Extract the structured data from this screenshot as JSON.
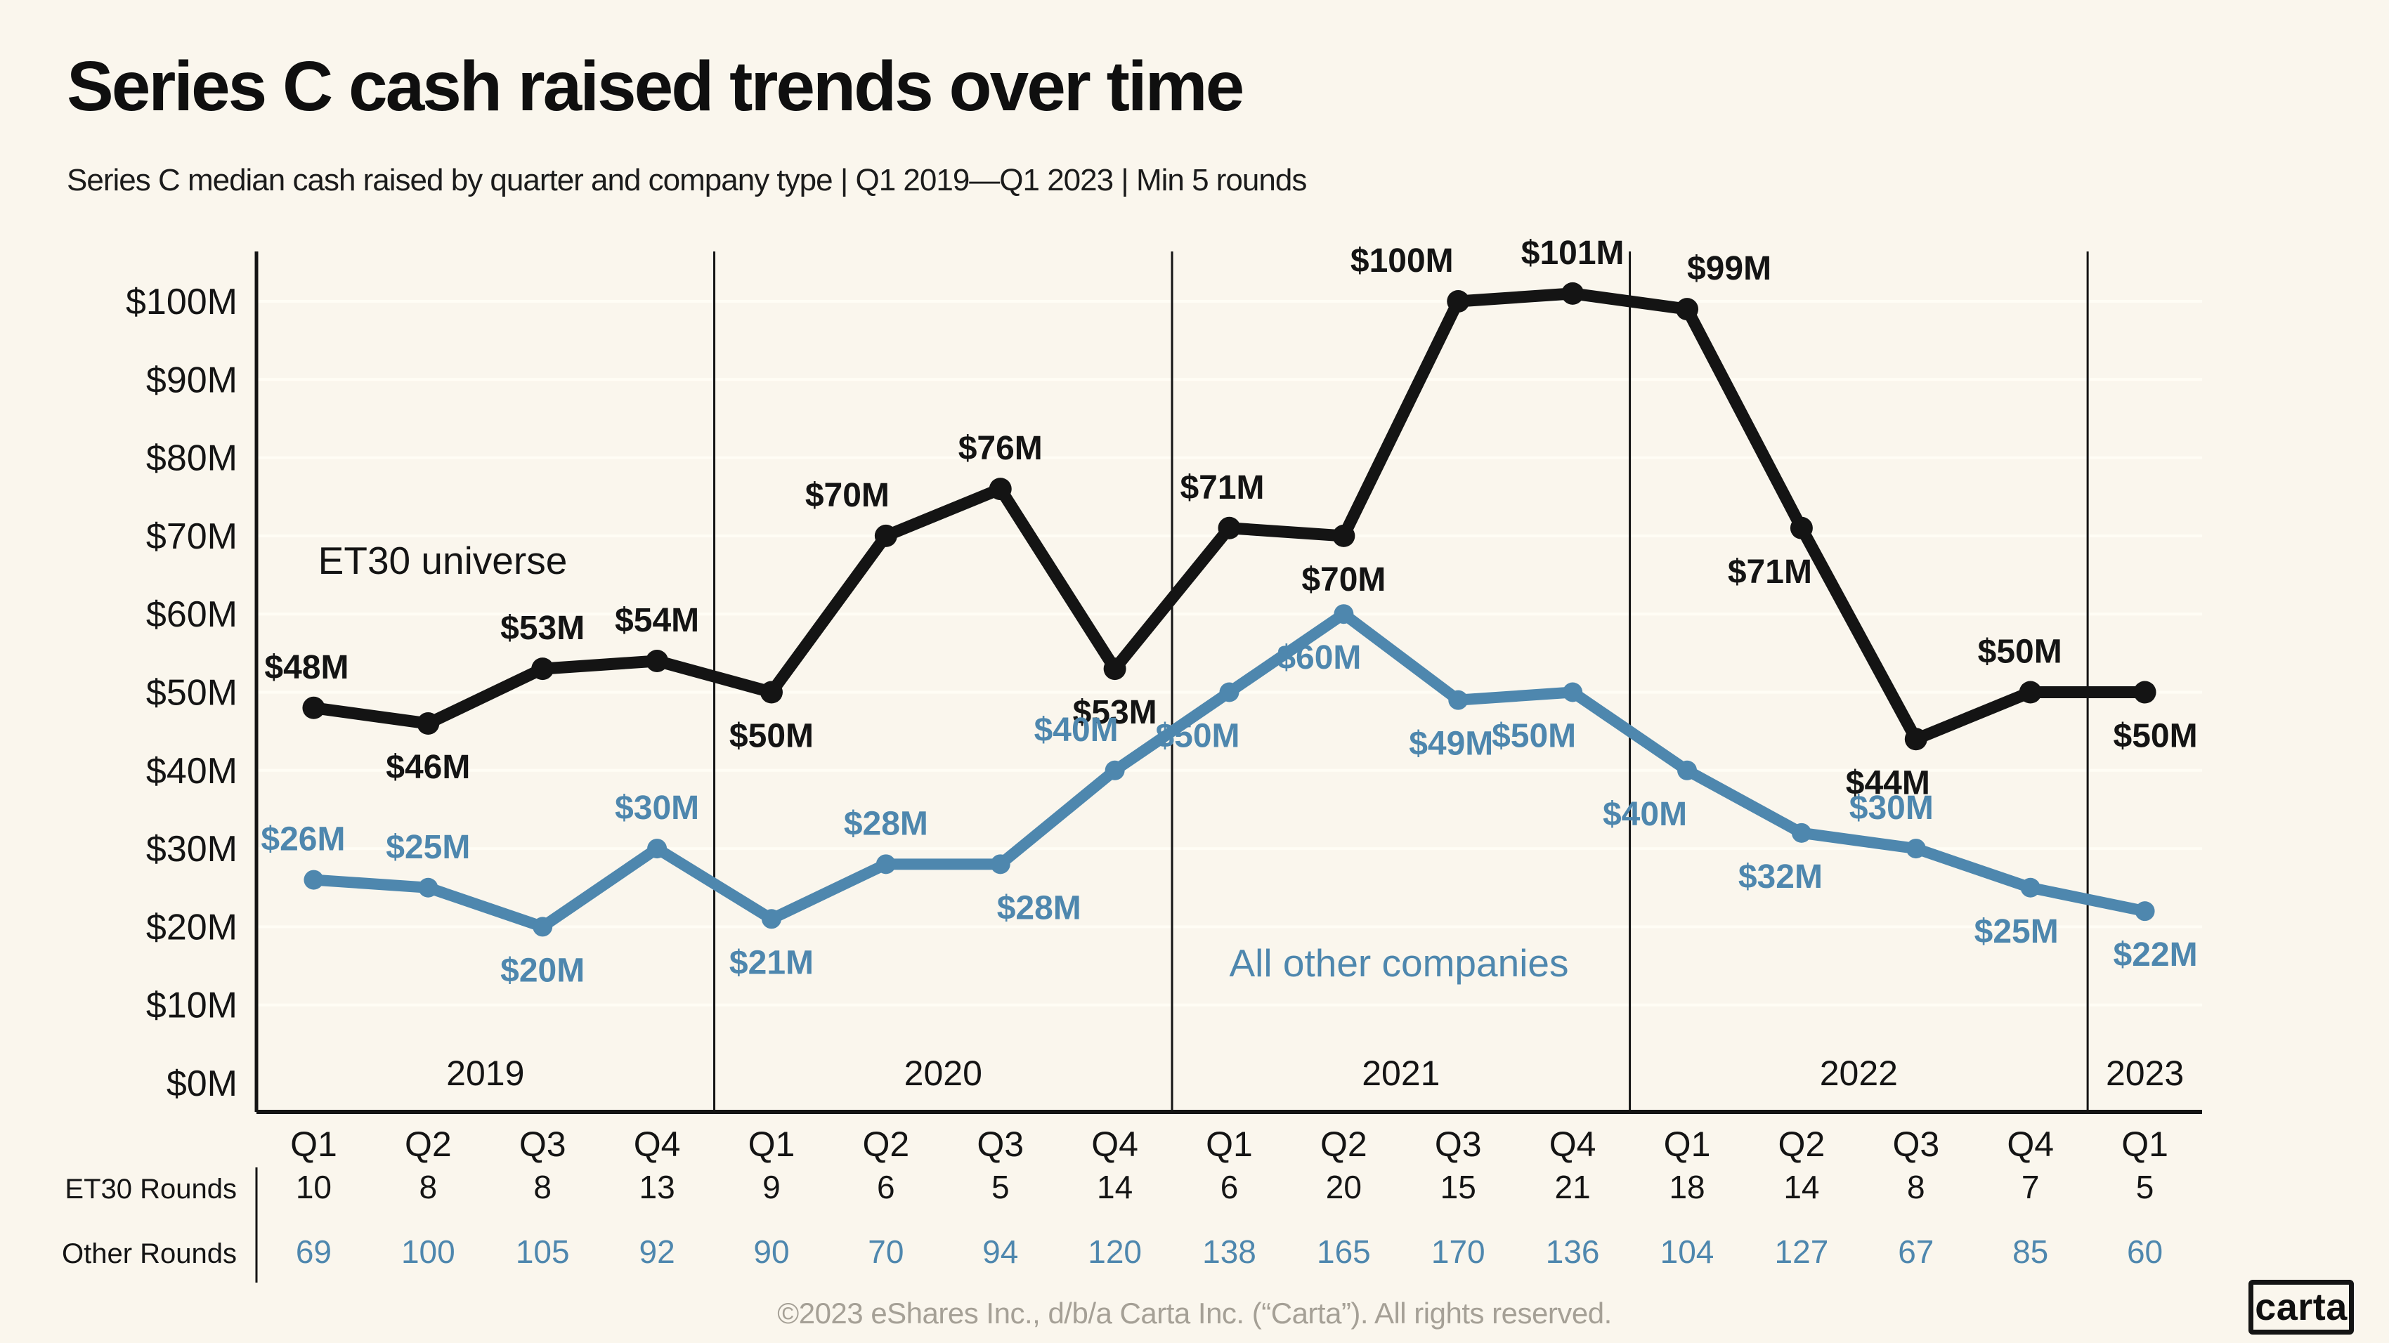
{
  "page": {
    "title": "Series C cash raised trends over time",
    "subtitle": "Series C median cash raised by quarter and company type | Q1 2019—Q1 2023 | Min 5 rounds",
    "footer": "©2023 eShares Inc., d/b/a Carta Inc. (“Carta”). All rights reserved.",
    "logo_text": "carta"
  },
  "colors": {
    "background": "#FAF6ED",
    "ink": "#141414",
    "blue": "#4E87AE",
    "gray_text": "#A5A096",
    "gridline": "#FFFDF5"
  },
  "chart_data": {
    "type": "line",
    "title": "Series C cash raised trends over time",
    "subtitle": "Series C median cash raised by quarter and company type | Q1 2019—Q1 2023 | Min 5 rounds",
    "x_categories": [
      "Q1",
      "Q2",
      "Q3",
      "Q4",
      "Q1",
      "Q2",
      "Q3",
      "Q4",
      "Q1",
      "Q2",
      "Q3",
      "Q4",
      "Q1",
      "Q2",
      "Q3",
      "Q4",
      "Q1"
    ],
    "year_groups": [
      {
        "year": "2019",
        "quarter_count": 4
      },
      {
        "year": "2020",
        "quarter_count": 4
      },
      {
        "year": "2021",
        "quarter_count": 4
      },
      {
        "year": "2022",
        "quarter_count": 4
      },
      {
        "year": "2023",
        "quarter_count": 1
      }
    ],
    "ylim": [
      0,
      106
    ],
    "yticks": [
      0,
      10,
      20,
      30,
      40,
      50,
      60,
      70,
      80,
      90,
      100
    ],
    "ytick_labels": [
      "$0M",
      "$10M",
      "$20M",
      "$30M",
      "$40M",
      "$50M",
      "$60M",
      "$70M",
      "$80M",
      "$90M",
      "$100M"
    ],
    "grid": "horizontal",
    "legend_position": "inline-annotations",
    "series": [
      {
        "name": "ET30 universe",
        "color": "#141414",
        "values": [
          48,
          46,
          53,
          54,
          50,
          70,
          76,
          53,
          71,
          70,
          100,
          101,
          99,
          71,
          44,
          50,
          50
        ],
        "value_labels": [
          "$48M",
          "$46M",
          "$53M",
          "$54M",
          "$50M",
          "$70M",
          "$76M",
          "$53M",
          "$71M",
          "$70M",
          "$100M",
          "$101M",
          "$99M",
          "$71M",
          "$44M",
          "$50M",
          "$50M"
        ],
        "label_pos": [
          "a",
          "b",
          "a",
          "a",
          "b",
          "a",
          "a",
          "b",
          "a",
          "b",
          "a",
          "a",
          "a",
          "b",
          "b",
          "a",
          "b"
        ],
        "label_dx": [
          -10,
          0,
          0,
          0,
          0,
          -55,
          0,
          0,
          -10,
          0,
          -80,
          0,
          60,
          -45,
          -40,
          -15,
          15
        ]
      },
      {
        "name": "All other companies",
        "color": "#4E87AE",
        "values": [
          26,
          25,
          20,
          30,
          21,
          28,
          28,
          40,
          50,
          60,
          49,
          50,
          40,
          32,
          30,
          25,
          22
        ],
        "value_labels": [
          "$26M",
          "$25M",
          "$20M",
          "$30M",
          "$21M",
          "$28M",
          "$28M",
          "$40M",
          "$50M",
          "$60M",
          "$49M",
          "$50M",
          "$40M",
          "$32M",
          "$30M",
          "$25M",
          "$22M"
        ],
        "label_pos": [
          "a",
          "a",
          "b",
          "a",
          "b",
          "a",
          "b",
          "a",
          "b",
          "b",
          "b",
          "b",
          "b",
          "b",
          "a",
          "b",
          "b"
        ],
        "label_dx": [
          -15,
          0,
          0,
          0,
          0,
          0,
          55,
          -55,
          -45,
          -35,
          -10,
          -55,
          -60,
          -30,
          -35,
          -20,
          15
        ]
      }
    ]
  },
  "table": {
    "rows": [
      {
        "label": "ET30 Rounds",
        "color": "#141414",
        "values": [
          10,
          8,
          8,
          13,
          9,
          6,
          5,
          14,
          6,
          20,
          15,
          21,
          18,
          14,
          8,
          7,
          5
        ]
      },
      {
        "label": "Other Rounds",
        "color": "#4E87AE",
        "values": [
          69,
          100,
          105,
          92,
          90,
          70,
          94,
          120,
          138,
          165,
          170,
          136,
          104,
          127,
          67,
          85,
          60
        ]
      }
    ]
  }
}
